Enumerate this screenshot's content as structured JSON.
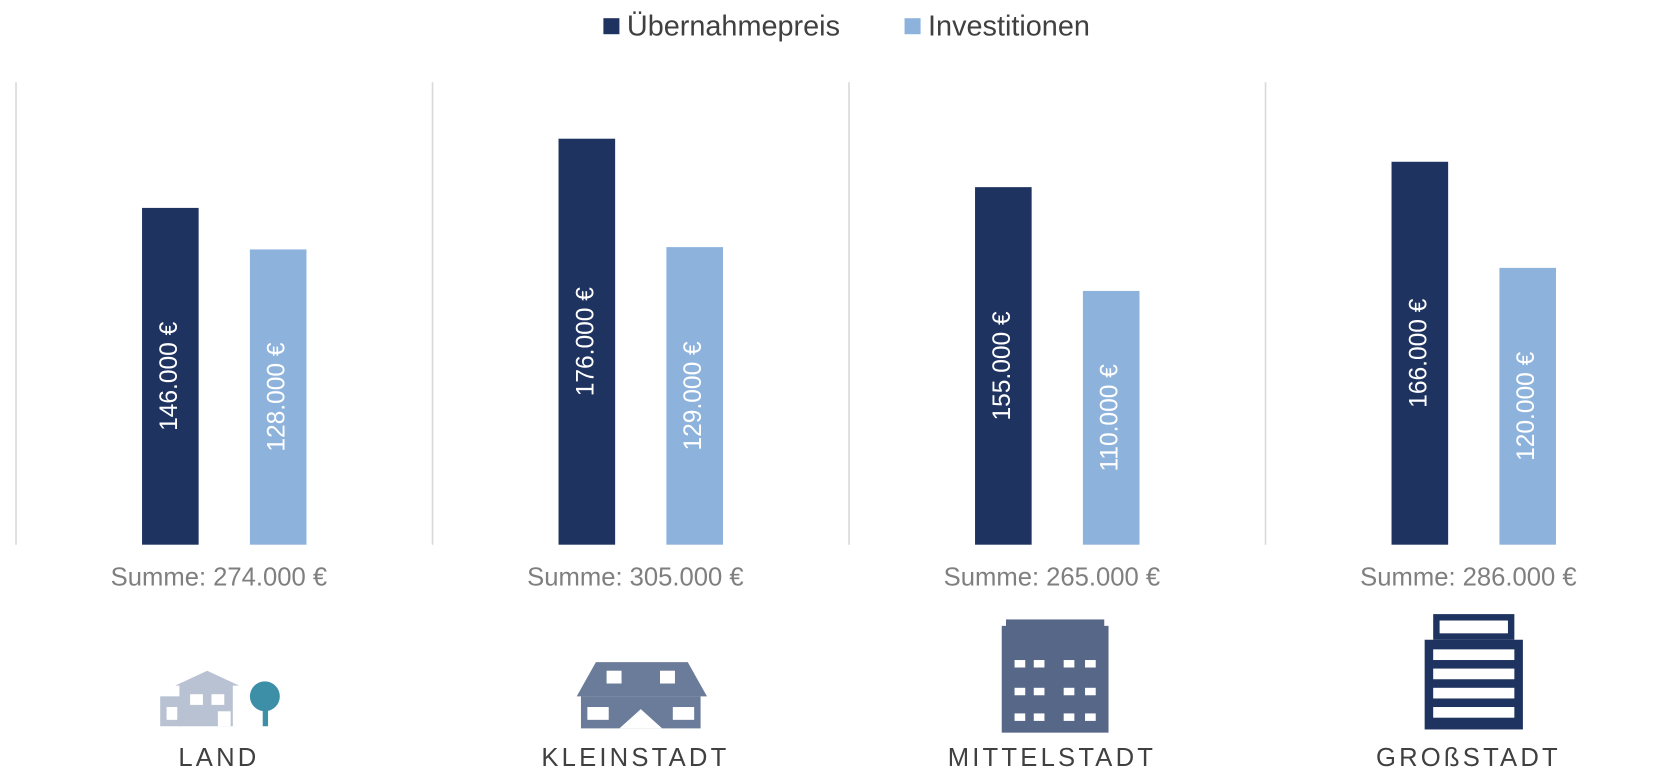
{
  "chart_data": {
    "type": "bar",
    "categories": [
      "LAND",
      "KLEINSTADT",
      "MITTELSTADT",
      "GROßSTADT"
    ],
    "series": [
      {
        "name": "Übernahmepreis",
        "color": "#1f3360",
        "values": [
          146000,
          176000,
          155000,
          166000
        ],
        "value_labels": [
          "146.000 €",
          "176.000 €",
          "155.000 €",
          "166.000 €"
        ]
      },
      {
        "name": "Investitionen",
        "color": "#8db3dd",
        "values": [
          128000,
          129000,
          110000,
          120000
        ],
        "value_labels": [
          "128.000 €",
          "129.000 €",
          "110.000 €",
          "120.000 €"
        ]
      }
    ],
    "sum_labels": [
      "Summe: 274.000 €",
      "Summe: 305.000 €",
      "Summe: 265.000 €",
      "Summe: 286.000 €"
    ],
    "ylim": [
      0,
      200000
    ],
    "legend": "top"
  }
}
